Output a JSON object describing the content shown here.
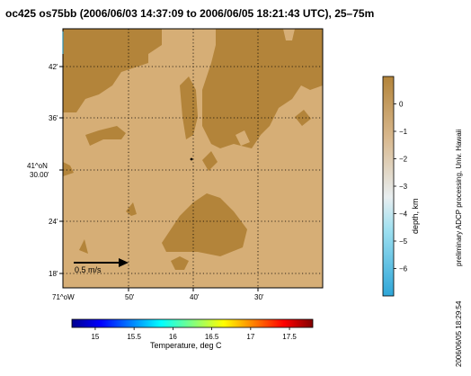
{
  "title": "oc425 os75bb (2006/06/03 14:37:09 to 2006/06/05 18:21:43 UTC), 25–75m",
  "map": {
    "lat_ticks": [
      "42'",
      "36'",
      "41^oN\n30.00'",
      "24'",
      "18'"
    ],
    "lon_ticks": [
      "71^oW",
      "50'",
      "40'",
      "30'"
    ],
    "colors": {
      "land_dark": "#b3843a",
      "land_light": "#d6ae76",
      "grid": "#000000"
    }
  },
  "scale_arrow": {
    "label": "0.5 m/s"
  },
  "depth_colorbar": {
    "label": "depth, km",
    "ticks": [
      "0",
      "−1",
      "−2",
      "−3",
      "−4",
      "−5",
      "−6"
    ],
    "values": [
      0,
      -1,
      -2,
      -3,
      -4,
      -5,
      -6
    ],
    "range": [
      1,
      -7
    ],
    "colors": {
      "top": "#b3843a",
      "mid": "#d8b88e",
      "light": "#9ee0f0",
      "bottom": "#2ea6d8"
    }
  },
  "temp_colorbar": {
    "label": "Temperature, deg C",
    "ticks": [
      "15",
      "15.5",
      "16",
      "16.5",
      "17",
      "17.5"
    ],
    "values": [
      15,
      15.5,
      16,
      16.5,
      17,
      17.5
    ],
    "range": [
      14.7,
      17.8
    ]
  },
  "side_text": {
    "credit": "preliminary ADCP processing,   Univ. Hawaii",
    "timestamp": "2006/06/05 18:29:54"
  }
}
